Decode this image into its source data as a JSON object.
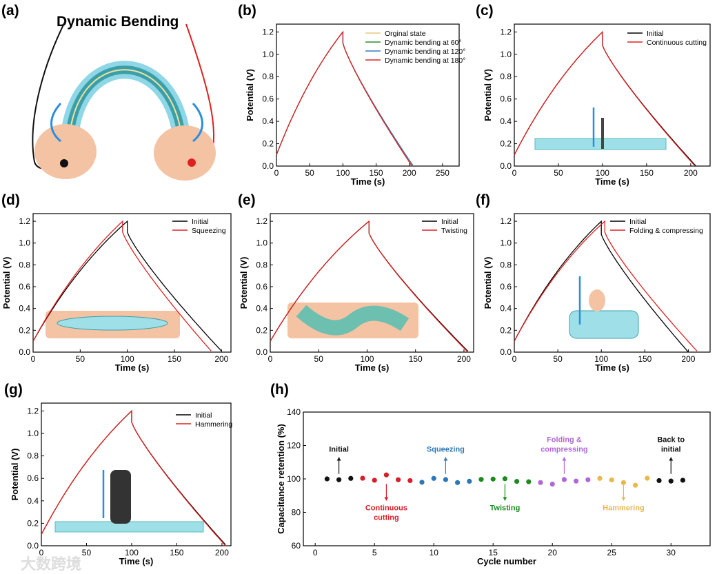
{
  "panel_labels": [
    "(a)",
    "(b)",
    "(c)",
    "(d)",
    "(e)",
    "(f)",
    "(g)",
    "(h)"
  ],
  "panel_a": {
    "title": "Dynamic Bending"
  },
  "watermark": "大数跨境",
  "chart_data": [
    {
      "type": "line",
      "panel": "(b)",
      "xlabel": "Time (s)",
      "ylabel": "Potential (V)",
      "xlim": [
        0,
        275
      ],
      "ylim": [
        0,
        1.27
      ],
      "xticks": [
        0,
        50,
        100,
        150,
        200,
        250
      ],
      "yticks": [
        0.0,
        0.2,
        0.4,
        0.6,
        0.8,
        1.0,
        1.2
      ],
      "legend": "top-right",
      "series": [
        {
          "name": "Orginal state",
          "color": "#e8c77a",
          "peak_time": 100,
          "end_time": 205,
          "v_start": 0.1,
          "v_peak": 1.2,
          "v_after_drop": 1.1
        },
        {
          "name": "Dynamic bending at 60°",
          "color": "#2e8b2e",
          "peak_time": 100,
          "end_time": 204,
          "v_start": 0.1,
          "v_peak": 1.2,
          "v_after_drop": 1.1
        },
        {
          "name": "Dynamic bending at 120°",
          "color": "#3a78c0",
          "peak_time": 100,
          "end_time": 206,
          "v_start": 0.1,
          "v_peak": 1.2,
          "v_after_drop": 1.1
        },
        {
          "name": "Dynamic bending at 180°",
          "color": "#e02020",
          "peak_time": 100,
          "end_time": 204,
          "v_start": 0.1,
          "v_peak": 1.2,
          "v_after_drop": 1.1
        }
      ]
    },
    {
      "type": "line",
      "panel": "(c)",
      "xlabel": "Time (s)",
      "ylabel": "Potential (V)",
      "xlim": [
        0,
        222
      ],
      "ylim": [
        0,
        1.27
      ],
      "xticks": [
        0,
        50,
        100,
        150,
        200
      ],
      "yticks": [
        0.0,
        0.2,
        0.4,
        0.6,
        0.8,
        1.0,
        1.2
      ],
      "legend": "top-right",
      "series": [
        {
          "name": "Initial",
          "color": "#000000",
          "peak_time": 100,
          "end_time": 206,
          "v_start": 0.1,
          "v_peak": 1.2,
          "v_after_drop": 1.08
        },
        {
          "name": "Continuous cutting",
          "color": "#e02020",
          "peak_time": 100,
          "end_time": 205,
          "v_start": 0.1,
          "v_peak": 1.2,
          "v_after_drop": 1.08
        }
      ]
    },
    {
      "type": "line",
      "panel": "(d)",
      "xlabel": "Time (s)",
      "ylabel": "Potential (V)",
      "xlim": [
        0,
        210
      ],
      "ylim": [
        0,
        1.27
      ],
      "xticks": [
        0,
        50,
        100,
        150,
        200
      ],
      "yticks": [
        0.0,
        0.2,
        0.4,
        0.6,
        0.8,
        1.0,
        1.2
      ],
      "legend": "top-right",
      "series": [
        {
          "name": "Initial",
          "color": "#000000",
          "peak_time": 100,
          "end_time": 201,
          "v_start": 0.1,
          "v_peak": 1.2,
          "v_after_drop": 1.1
        },
        {
          "name": "Squeezing",
          "color": "#e02020",
          "peak_time": 95,
          "end_time": 190,
          "v_start": 0.1,
          "v_peak": 1.2,
          "v_after_drop": 1.1
        }
      ]
    },
    {
      "type": "line",
      "panel": "(e)",
      "xlabel": "Time (s)",
      "ylabel": "Potential (V)",
      "xlim": [
        0,
        210
      ],
      "ylim": [
        0,
        1.27
      ],
      "xticks": [
        0,
        50,
        100,
        150,
        200
      ],
      "yticks": [
        0.0,
        0.2,
        0.4,
        0.6,
        0.8,
        1.0,
        1.2
      ],
      "legend": "top-right",
      "series": [
        {
          "name": "Initial",
          "color": "#000000",
          "peak_time": 102,
          "end_time": 205,
          "v_start": 0.1,
          "v_peak": 1.2,
          "v_after_drop": 1.09
        },
        {
          "name": "Twisting",
          "color": "#e02020",
          "peak_time": 102,
          "end_time": 204,
          "v_start": 0.1,
          "v_peak": 1.2,
          "v_after_drop": 1.09
        }
      ]
    },
    {
      "type": "line",
      "panel": "(f)",
      "xlabel": "Time (s)",
      "ylabel": "Potential (V)",
      "xlim": [
        0,
        225
      ],
      "ylim": [
        0,
        1.27
      ],
      "xticks": [
        0,
        50,
        100,
        150,
        200
      ],
      "yticks": [
        0.0,
        0.2,
        0.4,
        0.6,
        0.8,
        1.0,
        1.2
      ],
      "legend": "top-right",
      "series": [
        {
          "name": "Initial",
          "color": "#000000",
          "peak_time": 100,
          "end_time": 200,
          "v_start": 0.1,
          "v_peak": 1.2,
          "v_after_drop": 1.08
        },
        {
          "name": "Folding & compressing",
          "color": "#e02020",
          "peak_time": 104,
          "end_time": 211,
          "v_start": 0.1,
          "v_peak": 1.2,
          "v_after_drop": 1.1
        }
      ]
    },
    {
      "type": "line",
      "panel": "(g)",
      "xlabel": "Time (s)",
      "ylabel": "Potential (V)",
      "xlim": [
        0,
        210
      ],
      "ylim": [
        0,
        1.27
      ],
      "xticks": [
        0,
        50,
        100,
        150,
        200
      ],
      "yticks": [
        0.0,
        0.2,
        0.4,
        0.6,
        0.8,
        1.0,
        1.2
      ],
      "legend": "top-right",
      "series": [
        {
          "name": "Initial",
          "color": "#000000",
          "peak_time": 100,
          "end_time": 205,
          "v_start": 0.1,
          "v_peak": 1.2,
          "v_after_drop": 1.1
        },
        {
          "name": "Hammering",
          "color": "#e02020",
          "peak_time": 100,
          "end_time": 204,
          "v_start": 0.1,
          "v_peak": 1.2,
          "v_after_drop": 1.1
        }
      ]
    },
    {
      "type": "scatter",
      "panel": "(h)",
      "xlabel": "Cycle number",
      "ylabel": "Capacitance retention (%)",
      "xlim": [
        -1,
        33.3
      ],
      "ylim": [
        60,
        140
      ],
      "xticks": [
        0,
        5,
        10,
        15,
        20,
        25,
        30
      ],
      "yticks": [
        60,
        80,
        100,
        120,
        140
      ],
      "x": [
        1,
        2,
        3,
        4,
        5,
        6,
        7,
        8,
        9,
        10,
        11,
        12,
        13,
        14,
        15,
        16,
        17,
        18,
        19,
        20,
        21,
        22,
        23,
        24,
        25,
        26,
        27,
        28,
        29,
        30,
        31
      ],
      "y": [
        100.0,
        99.5,
        100.3,
        100.4,
        99.2,
        102.4,
        99.5,
        99.0,
        98.0,
        100.3,
        99.6,
        97.8,
        98.6,
        99.7,
        99.9,
        100.1,
        98.5,
        98.3,
        97.8,
        96.9,
        99.6,
        98.7,
        99.5,
        100.3,
        99.4,
        97.8,
        96.2,
        100.4,
        99.0,
        98.7,
        99.2
      ],
      "groups": [
        {
          "label": "Initial",
          "color": "#111111",
          "cycles": [
            1,
            3
          ],
          "annot_cycle": 2,
          "arrow": "up"
        },
        {
          "label": "Continuous cutting",
          "color": "#d81e28",
          "cycles": [
            4,
            8
          ],
          "annot_cycle": 6,
          "arrow": "down"
        },
        {
          "label": "Squeezing",
          "color": "#2b78b8",
          "cycles": [
            9,
            13
          ],
          "annot_cycle": 11,
          "arrow": "up"
        },
        {
          "label": "Twisting",
          "color": "#1e8a1e",
          "cycles": [
            14,
            18
          ],
          "annot_cycle": 16,
          "arrow": "down"
        },
        {
          "label": "Folding & compressing",
          "color": "#b068d8",
          "cycles": [
            19,
            23
          ],
          "annot_cycle": 21,
          "arrow": "up"
        },
        {
          "label": "Hammering",
          "color": "#e8b850",
          "cycles": [
            24,
            28
          ],
          "annot_cycle": 26,
          "arrow": "down"
        },
        {
          "label": "Back to initial",
          "color": "#111111",
          "cycles": [
            29,
            31
          ],
          "annot_cycle": 30,
          "arrow": "up"
        }
      ]
    }
  ]
}
